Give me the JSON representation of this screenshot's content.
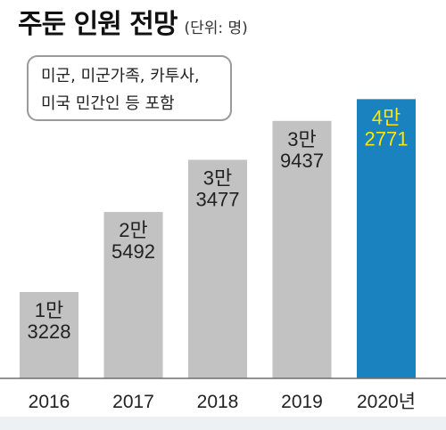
{
  "header": {
    "title": "주둔 인원 전망",
    "unit": "(단위: 명)"
  },
  "note": {
    "line1": "미군, 미군가족, 카투사,",
    "line2": "미국 민간인 등 포함"
  },
  "colors": {
    "bar_default": "#c2c2c2",
    "bar_highlight": "#1a82bf",
    "label_default": "#222222",
    "label_highlight": "#ffe600",
    "baseline": "#6e6e6e"
  },
  "chart_data": {
    "type": "bar",
    "title": "주둔 인원 전망",
    "unit": "(단위: 명)",
    "categories": [
      "2016",
      "2017",
      "2018",
      "2019",
      "2020년"
    ],
    "values": [
      13228,
      25492,
      33477,
      39437,
      42771
    ],
    "value_labels": [
      [
        "1만",
        "3228"
      ],
      [
        "2만",
        "5492"
      ],
      [
        "3만",
        "3477"
      ],
      [
        "3만",
        "9437"
      ],
      [
        "4만",
        "2771"
      ]
    ],
    "highlight_index": 4,
    "ylim": [
      0,
      45000
    ],
    "grid": false,
    "legend": "none"
  }
}
